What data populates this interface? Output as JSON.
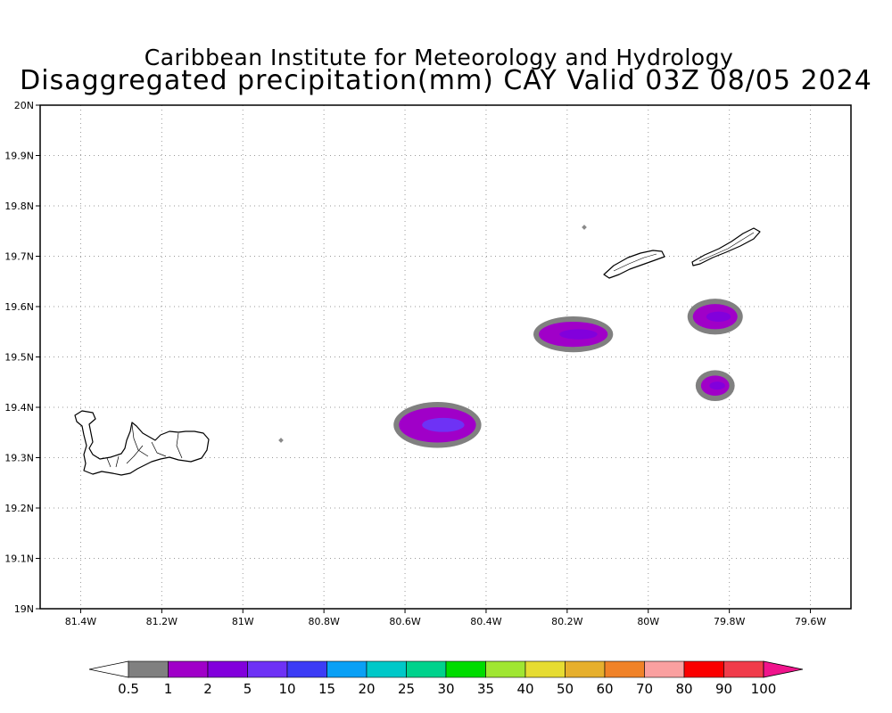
{
  "title": {
    "line1": "Caribbean Institute for Meteorology and Hydrology",
    "line2": "Disaggregated precipitation(mm) CAY Valid 03Z 08/05 2024"
  },
  "map": {
    "lon_range": [
      -81.5,
      -79.5
    ],
    "lat_range": [
      19.0,
      20.0
    ],
    "grid": "dotted",
    "lon_ticks": [
      {
        "value": -81.4,
        "label": "81.4W"
      },
      {
        "value": -81.2,
        "label": "81.2W"
      },
      {
        "value": -81.0,
        "label": "81W"
      },
      {
        "value": -80.8,
        "label": "80.8W"
      },
      {
        "value": -80.6,
        "label": "80.6W"
      },
      {
        "value": -80.4,
        "label": "80.4W"
      },
      {
        "value": -80.2,
        "label": "80.2W"
      },
      {
        "value": -80.0,
        "label": "80W"
      },
      {
        "value": -79.8,
        "label": "79.8W"
      },
      {
        "value": -79.6,
        "label": "79.6W"
      }
    ],
    "lat_ticks": [
      {
        "value": 20.0,
        "label": "20N"
      },
      {
        "value": 19.9,
        "label": "19.9N"
      },
      {
        "value": 19.8,
        "label": "19.8N"
      },
      {
        "value": 19.7,
        "label": "19.7N"
      },
      {
        "value": 19.6,
        "label": "19.6N"
      },
      {
        "value": 19.5,
        "label": "19.5N"
      },
      {
        "value": 19.4,
        "label": "19.4N"
      },
      {
        "value": 19.3,
        "label": "19.3N"
      },
      {
        "value": 19.2,
        "label": "19.2N"
      },
      {
        "value": 19.1,
        "label": "19.1N"
      },
      {
        "value": 19.0,
        "label": "19N"
      }
    ],
    "precip_cells": [
      {
        "lon": -80.52,
        "lat": 19.365,
        "d_lon": 0.19,
        "d_lat": 0.07,
        "level": "1-2 mm",
        "core": "5-10 mm"
      },
      {
        "lon": -80.185,
        "lat": 19.545,
        "d_lon": 0.17,
        "d_lat": 0.05,
        "level": "1-2 mm",
        "core": "2-5 mm"
      },
      {
        "lon": -79.835,
        "lat": 19.58,
        "d_lon": 0.11,
        "d_lat": 0.05,
        "level": "1-2 mm",
        "core": "2-5 mm"
      },
      {
        "lon": -79.835,
        "lat": 19.443,
        "d_lon": 0.07,
        "d_lat": 0.04,
        "level": "1-2 mm",
        "core": "2-5 mm"
      }
    ],
    "islands": [
      "Grand Cayman",
      "Little Cayman",
      "Cayman Brac"
    ]
  },
  "colorbar": {
    "labels": [
      "0.5",
      "1",
      "2",
      "5",
      "10",
      "15",
      "20",
      "25",
      "30",
      "35",
      "40",
      "50",
      "60",
      "70",
      "80",
      "90",
      "100"
    ],
    "colors": [
      "#808080",
      "#a000c8",
      "#8200dc",
      "#6e32f5",
      "#3c3cf5",
      "#0aa0f5",
      "#00c8c8",
      "#00d28c",
      "#00dc00",
      "#a0e632",
      "#e6dc32",
      "#e6af2d",
      "#f08228",
      "#faa0a0",
      "#fa0000",
      "#f03c4b"
    ],
    "under_color": "#ffffff",
    "over_color": "#f0148c"
  }
}
